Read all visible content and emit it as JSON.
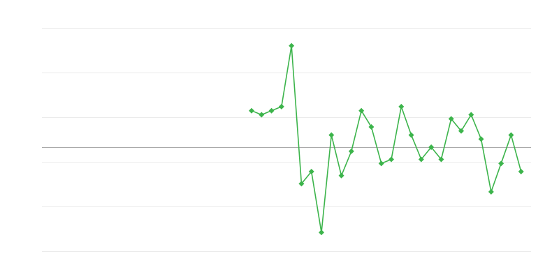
{
  "chart_data": {
    "type": "line",
    "title": "",
    "xlabel": "",
    "ylabel": "",
    "x": [
      21,
      22,
      23,
      24,
      25,
      26,
      27,
      28,
      29,
      30,
      31,
      32,
      33,
      34,
      35,
      36,
      37,
      38,
      39,
      40,
      41,
      42,
      43,
      44,
      45,
      46,
      47,
      48
    ],
    "series": [
      {
        "values": [
          9,
          8,
          9,
          10,
          25,
          -9,
          -6,
          -21,
          3,
          -7,
          -1,
          9,
          5,
          -4,
          -3,
          10,
          3,
          -3,
          0,
          -3,
          7,
          4,
          8,
          2,
          -11,
          -4,
          3,
          -6
        ],
        "color": "#3cb44b",
        "marker": "diamond"
      }
    ],
    "xlim": [
      0,
      49
    ],
    "ylim": [
      -25.6,
      29.4
    ],
    "grid": true,
    "gridlines_y": [
      29.4,
      18.4,
      7.4,
      -3.6,
      -14.6,
      -25.6
    ],
    "zero_line": true,
    "legend": "none",
    "colors": {
      "grid": "#ebebeb",
      "zero_line": "#aaaaaa",
      "series": "#3cb44b"
    }
  }
}
